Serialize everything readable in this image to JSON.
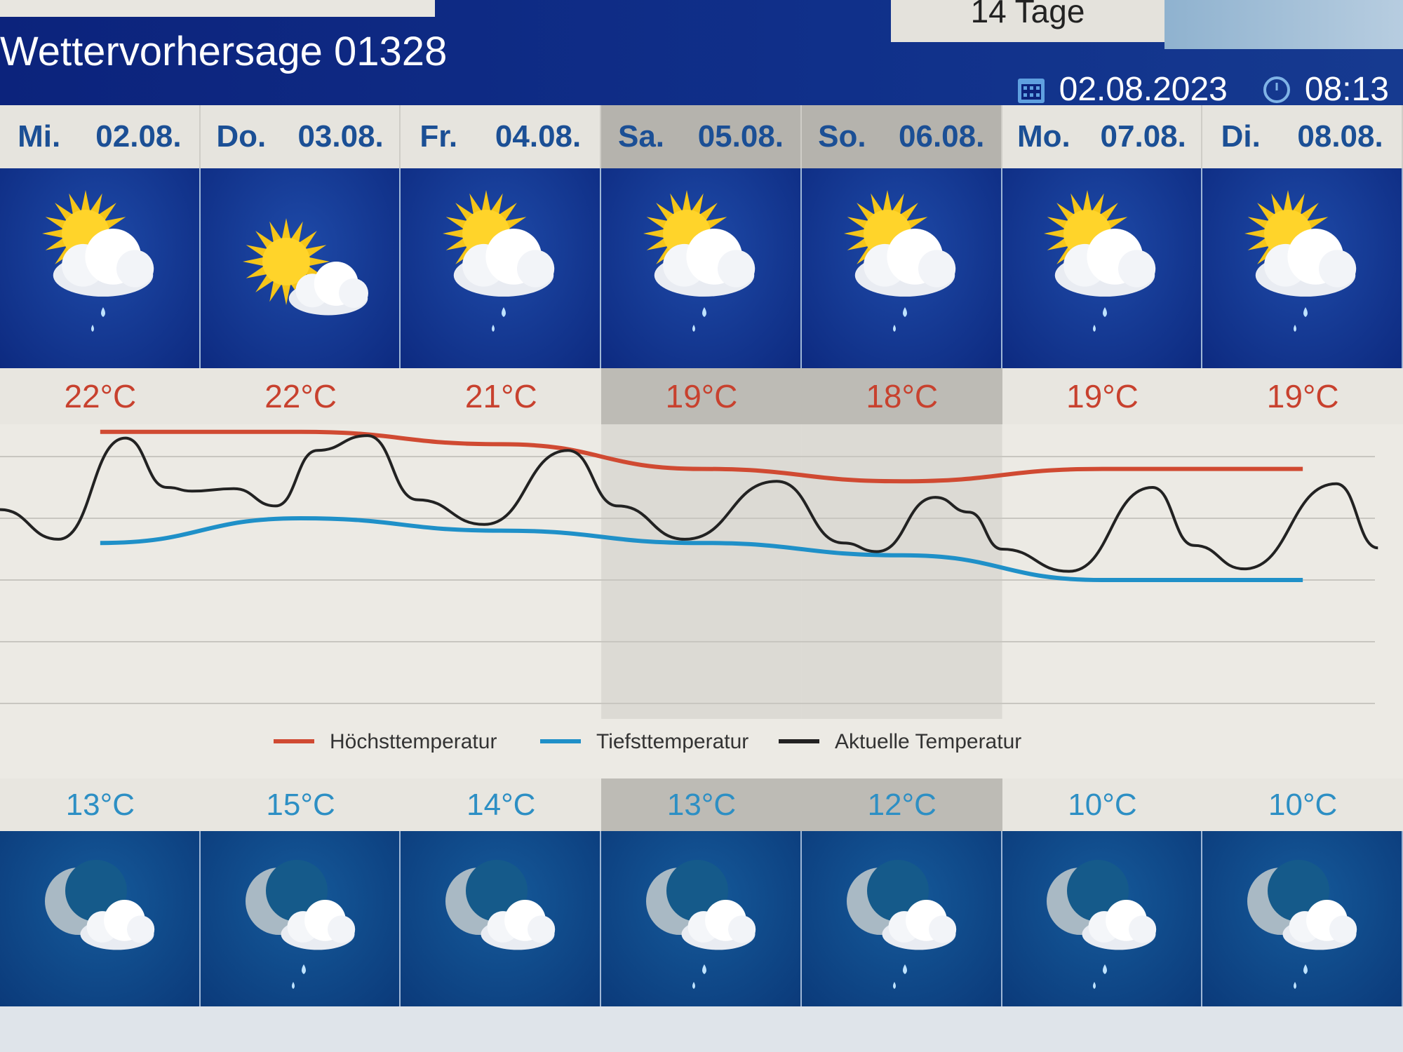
{
  "header": {
    "top_tab_label": "14 Tage",
    "title": "Wettervorhersage 01328",
    "date": "02.08.2023",
    "time": "08:13",
    "date_icon": "calendar-icon",
    "time_icon": "clock-icon"
  },
  "days": [
    {
      "weekday": "Mi.",
      "date": "02.08.",
      "high": "22°C",
      "low": "13°C",
      "day_icon": "sun-cloud-drizzle",
      "night_icon": "moon-cloud",
      "weekend": false
    },
    {
      "weekday": "Do.",
      "date": "03.08.",
      "high": "22°C",
      "low": "15°C",
      "day_icon": "sun-cloud",
      "night_icon": "moon-cloud-drizzle",
      "weekend": false
    },
    {
      "weekday": "Fr.",
      "date": "04.08.",
      "high": "21°C",
      "low": "14°C",
      "day_icon": "sun-cloud-drizzle",
      "night_icon": "moon-cloud",
      "weekend": false
    },
    {
      "weekday": "Sa.",
      "date": "05.08.",
      "high": "19°C",
      "low": "13°C",
      "day_icon": "sun-cloud-drizzle",
      "night_icon": "moon-cloud-drizzle",
      "weekend": true
    },
    {
      "weekday": "So.",
      "date": "06.08.",
      "high": "18°C",
      "low": "12°C",
      "day_icon": "sun-cloud-drizzle",
      "night_icon": "moon-cloud-drizzle",
      "weekend": true
    },
    {
      "weekday": "Mo.",
      "date": "07.08.",
      "high": "19°C",
      "low": "10°C",
      "day_icon": "sun-cloud-drizzle",
      "night_icon": "moon-cloud-drizzle",
      "weekend": false
    },
    {
      "weekday": "Di.",
      "date": "08.08.",
      "high": "19°C",
      "low": "10°C",
      "day_icon": "sun-cloud-drizzle",
      "night_icon": "moon-cloud-drizzle",
      "weekend": false
    }
  ],
  "chart_data": {
    "type": "line",
    "grid": true,
    "legend_position": "bottom",
    "ylim": [
      0,
      25
    ],
    "categories": [
      "02.08.",
      "03.08.",
      "04.08.",
      "05.08.",
      "06.08.",
      "07.08.",
      "08.08."
    ],
    "series": [
      {
        "name": "Höchsttemperatur",
        "color": "#d04a32",
        "values": [
          22,
          22,
          21,
          19,
          18,
          19,
          19
        ]
      },
      {
        "name": "Tiefsttemperatur",
        "color": "#1f90c8",
        "values": [
          13,
          15,
          14,
          13,
          12,
          10,
          10
        ]
      },
      {
        "name": "Aktuelle Temperatur",
        "color": "#222222",
        "points": [
          [
            "02.08. 00:00",
            15.7
          ],
          [
            "02.08. 07:00",
            13.3
          ],
          [
            "02.08. 15:00",
            21.5
          ],
          [
            "02.08. 20:00",
            17.5
          ],
          [
            "02.08. 23:00",
            17.2
          ],
          [
            "03.08. 04:00",
            17.4
          ],
          [
            "03.08. 09:00",
            16
          ],
          [
            "03.08. 14:00",
            20.5
          ],
          [
            "03.08. 20:00",
            21.7
          ],
          [
            "04.08. 02:00",
            16.5
          ],
          [
            "04.08. 10:00",
            14.5
          ],
          [
            "04.08. 20:00",
            20.5
          ],
          [
            "05.08. 02:00",
            16
          ],
          [
            "05.08. 10:00",
            13.3
          ],
          [
            "05.08. 21:00",
            18
          ],
          [
            "06.08. 05:00",
            13
          ],
          [
            "06.08. 09:00",
            12.3
          ],
          [
            "06.08. 16:00",
            16.7
          ],
          [
            "06.08. 20:00",
            15.5
          ],
          [
            "07.08. 00:00",
            12.5
          ],
          [
            "07.08. 08:00",
            10.7
          ],
          [
            "07.08. 18:00",
            17.5
          ],
          [
            "07.08. 23:00",
            12.8
          ],
          [
            "08.08. 05:00",
            10.9
          ],
          [
            "08.08. 16:00",
            17.8
          ],
          [
            "08.08. 21:00",
            12.6
          ]
        ]
      }
    ]
  }
}
